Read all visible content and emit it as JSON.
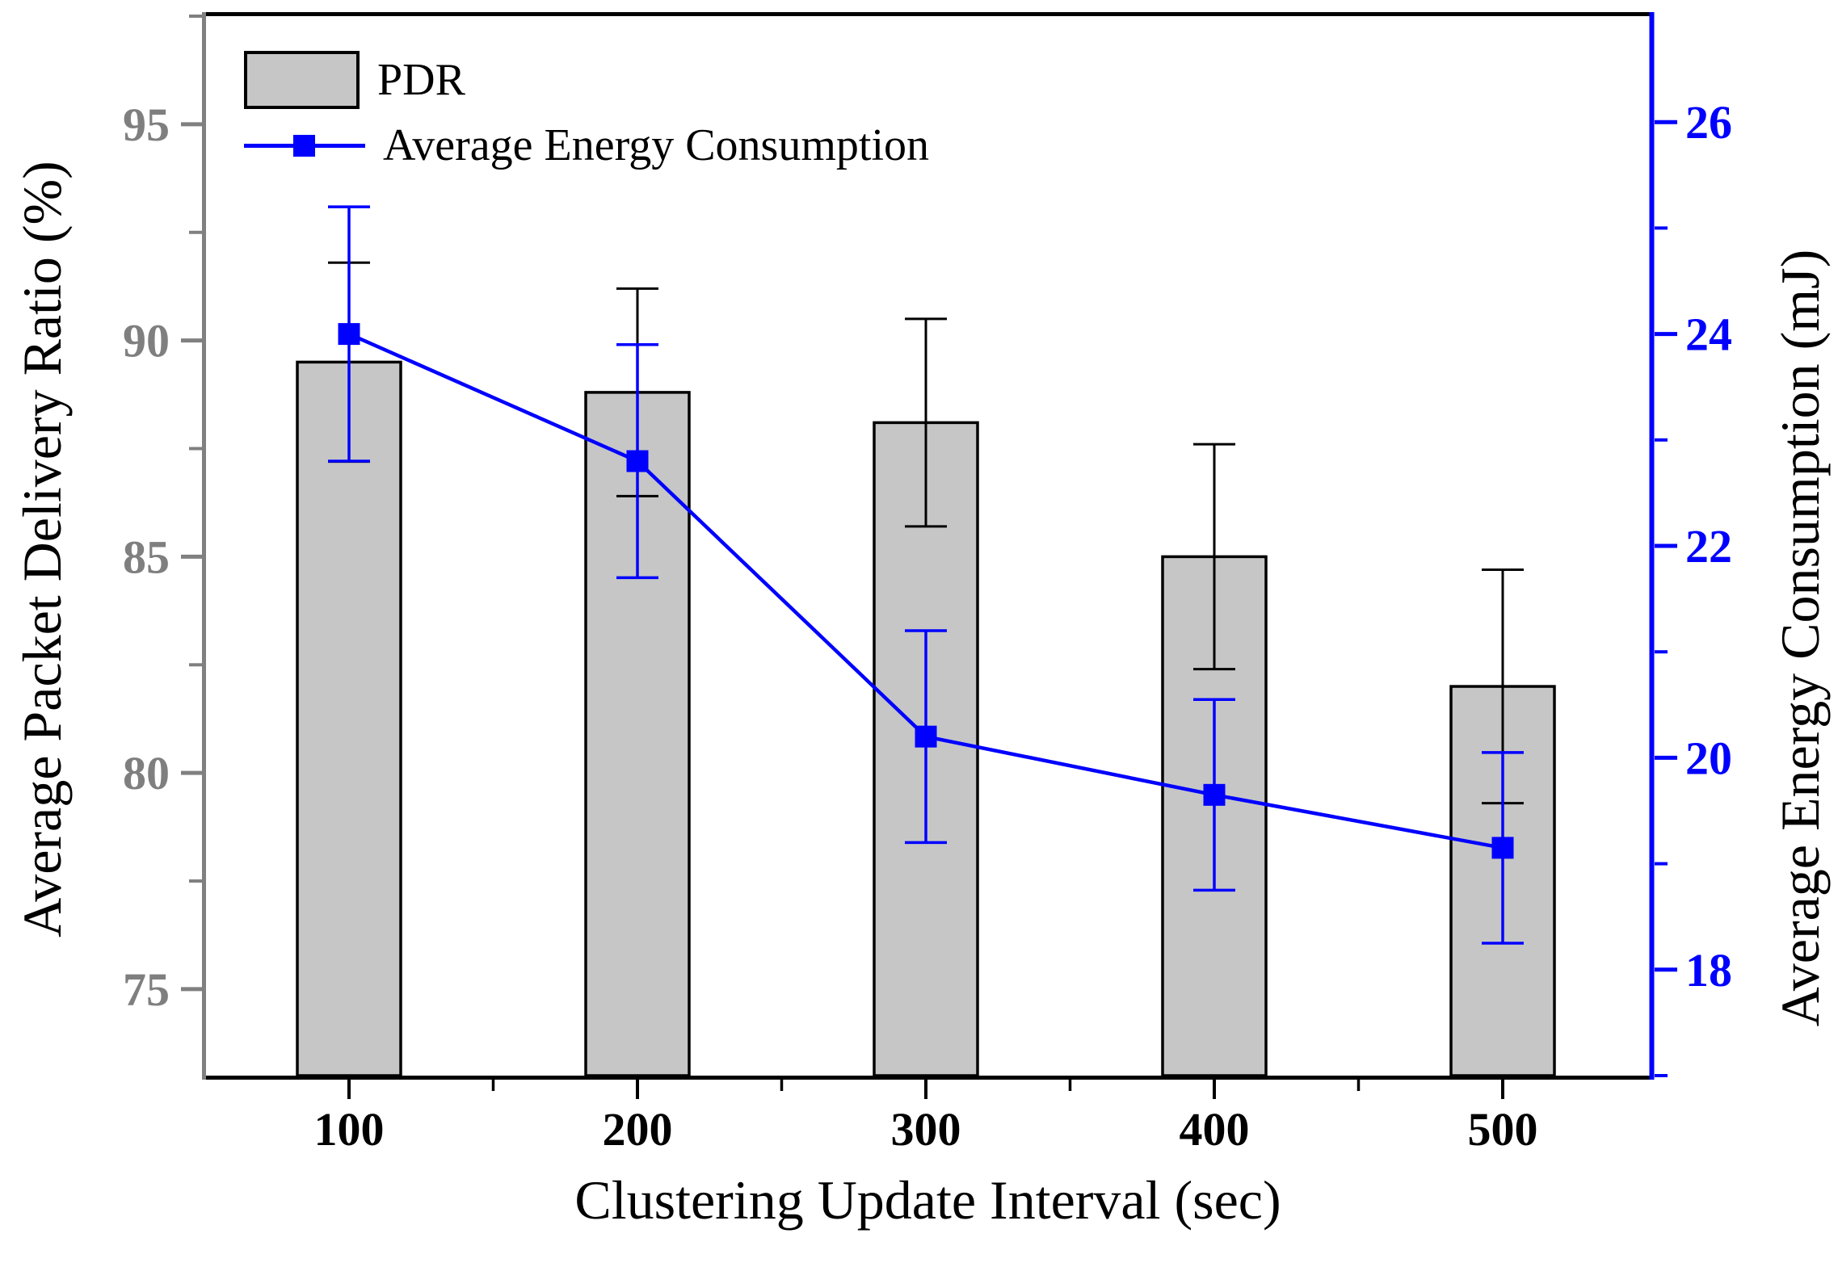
{
  "figure": {
    "background": "#ffffff"
  },
  "legend": {
    "items": [
      {
        "label": "PDR",
        "swatch": "gray-bar"
      },
      {
        "label": "Average Energy Consumption",
        "swatch": "blue-line-square"
      }
    ]
  },
  "chart_data": {
    "type": "combo-bar-line-dual-axis",
    "categories": [
      "100",
      "200",
      "300",
      "400",
      "500"
    ],
    "xlabel": "Clustering Update Interval (sec)",
    "left_axis": {
      "label": "Average Packet Delivery Ratio (%)",
      "min": 73,
      "max": 97.5,
      "major_ticks": [
        95,
        90,
        85,
        80,
        75
      ],
      "minor_ticks": [
        97.5,
        92.5,
        87.5,
        82.5,
        77.5
      ],
      "axis_color": "#808080",
      "tick_label_color": "#7f7f7f",
      "title_color": "#000000"
    },
    "right_axis": {
      "label": "Average Energy Consumption (mJ)",
      "min": 17,
      "max": 27,
      "major_ticks": [
        26,
        24,
        22,
        20,
        18
      ],
      "minor_ticks": [
        25,
        23,
        21,
        19,
        17
      ],
      "axis_color": "#0000ff",
      "tick_label_color": "#0000ff",
      "title_color": "#000000"
    },
    "x_axis": {
      "color": "#000000",
      "minor_ticks_at_midpoints": true
    },
    "series": [
      {
        "name": "PDR",
        "type": "bar",
        "axis": "left",
        "values": [
          89.5,
          88.8,
          88.1,
          85.0,
          82.0
        ],
        "error": [
          2.3,
          2.4,
          2.4,
          2.6,
          2.7
        ],
        "fill": "#c6c6c6",
        "stroke": "#000000"
      },
      {
        "name": "Average Energy Consumption",
        "type": "line",
        "axis": "right",
        "marker": "square",
        "values": [
          24.0,
          22.8,
          20.2,
          19.65,
          19.15
        ],
        "error": [
          1.2,
          1.1,
          1.0,
          0.9,
          0.9
        ],
        "color": "#0000ff"
      }
    ],
    "legend_position": "top-left-inside",
    "grid": false
  }
}
